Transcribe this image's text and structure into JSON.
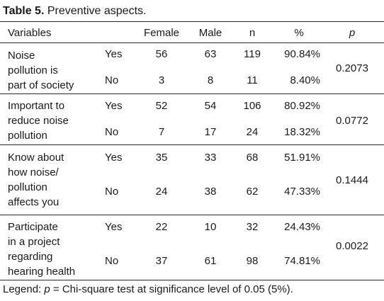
{
  "title": {
    "label": "Table 5.",
    "text": "Preventive aspects."
  },
  "headers": {
    "variables": "Variables",
    "female": "Female",
    "male": "Male",
    "n": "n",
    "percent": "%",
    "p": "p"
  },
  "rows": [
    {
      "variable_lines": [
        "Noise",
        "pollution is",
        "part of society"
      ],
      "p": "0.2073",
      "answers": [
        {
          "answer": "Yes",
          "female": "56",
          "male": "63",
          "n": "119",
          "percent": "90.84%"
        },
        {
          "answer": "No",
          "female": "3",
          "male": "8",
          "n": "11",
          "percent": "8.40%"
        }
      ]
    },
    {
      "variable_lines": [
        "Important to",
        "reduce noise",
        "pollution"
      ],
      "p": "0.0772",
      "answers": [
        {
          "answer": "Yes",
          "female": "52",
          "male": "54",
          "n": "106",
          "percent": "80.92%"
        },
        {
          "answer": "No",
          "female": "7",
          "male": "17",
          "n": "24",
          "percent": "18.32%"
        }
      ]
    },
    {
      "variable_lines": [
        "Know about",
        "how noise/",
        "pollution",
        "affects you"
      ],
      "p": "0.1444",
      "answers": [
        {
          "answer": "Yes",
          "female": "35",
          "male": "33",
          "n": "68",
          "percent": "51.91%"
        },
        {
          "answer": "No",
          "female": "24",
          "male": "38",
          "n": "62",
          "percent": "47.33%"
        }
      ]
    },
    {
      "variable_lines": [
        "Participate",
        "in a project",
        "regarding",
        "hearing health"
      ],
      "p": "0.0022",
      "answers": [
        {
          "answer": "Yes",
          "female": "22",
          "male": "10",
          "n": "32",
          "percent": "24.43%"
        },
        {
          "answer": "No",
          "female": "37",
          "male": "61",
          "n": "98",
          "percent": "74.81%"
        }
      ]
    }
  ],
  "legend": {
    "prefix": "Legend:",
    "p": "p",
    "text": "= Chi-square test at significance level of 0.05 (5%)."
  }
}
